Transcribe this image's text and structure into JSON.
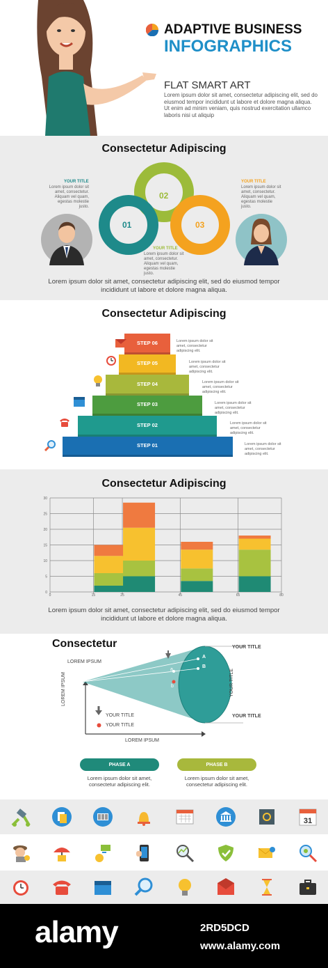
{
  "header": {
    "title1": "ADAPTIVE BUSINESS",
    "title2": "INFOGRAPHICS",
    "subtitle": "FLAT SMART ART",
    "body": "Lorem ipsum dolor sit amet, consectetur adipiscing elit, sed do eiusmod tempor incididunt ut labore et dolore magna aliqua. Ut enim ad minim veniam, quis nostrud exercitation ullamco laboris nisi ut aliquip"
  },
  "section1": {
    "heading": "Consectetur Adipiscing",
    "nodes": [
      "01",
      "02",
      "03"
    ],
    "left_title": "YOUR TITLE",
    "left_text": "Lorem ipsum dolor sit amet, consectetur. Aliquam vel quam, egestas molestie justo.",
    "right_title": "YOUR TITLE",
    "right_text": "Lorem ipsum dolor sit amet, consectetur. Aliquam vel quam, egestas molestie justo.",
    "bottom_title": "YOUR TITLE",
    "bottom_text": "Lorem ipsum dolor sit amet, consectetur. Aliquam vel quam, egestas molestie justo.",
    "caption": "Lorem ipsum dolor sit amet, consectetur adipiscing elit, sed do eiusmod tempor incididunt ut labore et dolore magna aliqua.",
    "colors": {
      "c01": "#1e8a8a",
      "c02": "#9cbb3a",
      "c03": "#f4a21f"
    }
  },
  "section2": {
    "heading": "Consectetur Adipiscing",
    "steps": [
      {
        "label": "STEP 06",
        "color": "#e8603c",
        "text": "Lorem ipsum dolor sit amet, consectetur adipiscing elit."
      },
      {
        "label": "STEP 05",
        "color": "#f2b822",
        "text": "Lorem ipsum dolor sit amet, consectetur adipiscing elit."
      },
      {
        "label": "STEP 04",
        "color": "#a8b83c",
        "text": "Lorem ipsum dolor sit amet, consectetur adipiscing elit."
      },
      {
        "label": "STEP 03",
        "color": "#4d9c3f",
        "text": "Lorem ipsum dolor sit amet, consectetur adipiscing elit."
      },
      {
        "label": "STEP 02",
        "color": "#1f9a8e",
        "text": "Lorem ipsum dolor sit amet, consectetur adipiscing elit."
      },
      {
        "label": "STEP 01",
        "color": "#1a6fb2",
        "text": "Lorem ipsum dolor sit amet, consectetur adipiscing elit."
      }
    ]
  },
  "chart_data": {
    "type": "bar",
    "stacked": true,
    "heading": "Consectetur Adipiscing",
    "categories": [
      "15",
      "25",
      "45",
      "65"
    ],
    "x_ticks": [
      "0",
      "15",
      "25",
      "45",
      "65",
      "80"
    ],
    "x_tick_values": [
      0,
      15,
      25,
      45,
      65,
      80
    ],
    "y_ticks": [
      "0",
      "5",
      "10",
      "15",
      "20",
      "25",
      "30"
    ],
    "ylim": [
      0,
      30
    ],
    "xlim": [
      0,
      80
    ],
    "grid": true,
    "series": [
      {
        "color": "#1f8a74",
        "values": [
          2,
          5,
          3.5,
          5
        ]
      },
      {
        "color": "#a8c240",
        "values": [
          4,
          5,
          4,
          8.5
        ]
      },
      {
        "color": "#f7c12f",
        "values": [
          5.5,
          10.5,
          6,
          3.5
        ]
      },
      {
        "color": "#ef7a40",
        "values": [
          3.5,
          8,
          2.5,
          1
        ]
      }
    ],
    "caption": "Lorem ipsum dolor sit amet, consectetur adipiscing elit, sed do eiusmod tempor incididunt ut labore et dolore magna aliqua."
  },
  "section4": {
    "heading": "Consectetur",
    "lorem_top": "LOREM IPSUM",
    "lorem_left": "LOREM IPSUM",
    "lorem_bottom": "LOREM IPSUM",
    "point_a": "A",
    "point_b": "B",
    "point_a_low": "a",
    "point_b_low": "b",
    "your_title_top": "YOUR TITLE",
    "your_title_mid": "YOUR TITLE",
    "your_title_bottom": "YOUR TITLE",
    "legend1": "YOUR TITLE",
    "legend2": "YOUR TITLE",
    "phase_a": "PHASE A",
    "phase_b": "PHASE B",
    "phase_a_text": "Lorem ipsum dolor sit amet, consectetur adipiscing elit.",
    "phase_b_text": "Lorem ipsum dolor sit amet, consectetur adipiscing elit.",
    "colors": {
      "cone": "#2f9d98",
      "phase_a": "#1f8a7a",
      "phase_b": "#a8b83c"
    }
  },
  "icons": {
    "row1": [
      "satellite-icon",
      "documents-icon",
      "barcode-icon",
      "bell-icon",
      "calendar-grid-icon",
      "bank-icon",
      "safe-icon",
      "calendar-31-icon"
    ],
    "calendar_day": "31",
    "row2": [
      "detective-icon",
      "umbrella-house-icon",
      "money-transfer-icon",
      "smartphone-icon",
      "graph-magnifier-icon",
      "shield-icon",
      "email-send-icon",
      "search-money-icon"
    ],
    "row3": [
      "alarm-clock-icon",
      "telephone-icon",
      "calendar-icon",
      "magnifier-icon",
      "lightbulb-icon",
      "envelope-icon",
      "hourglass-icon",
      "briefcase-icon"
    ]
  },
  "footer": {
    "brand": "alamy",
    "image_id": "2RD5DCD",
    "url": "www.alamy.com"
  }
}
